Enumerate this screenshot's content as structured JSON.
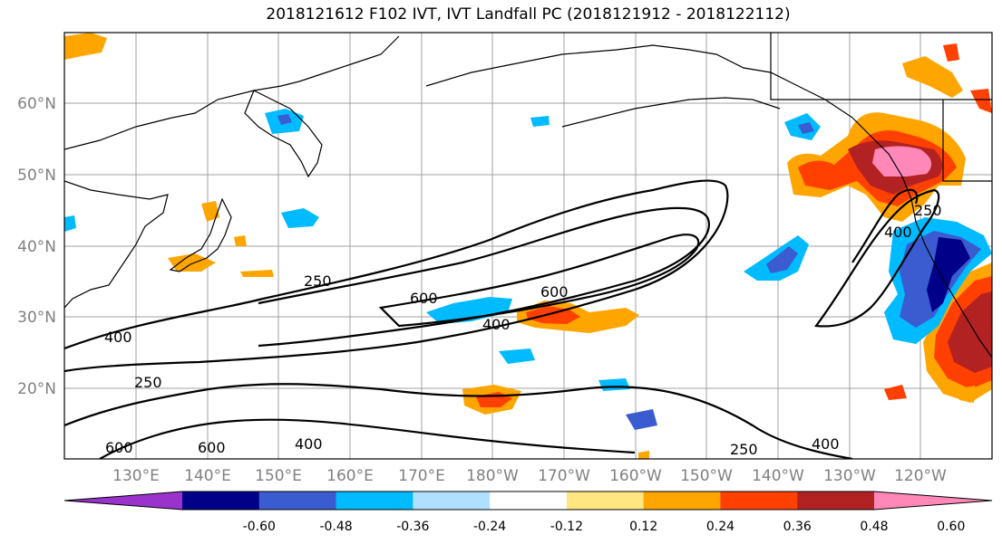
{
  "title": "2018121612 F102 IVT, IVT Landfall PC (2018121912 - 2018122112)",
  "latitude_labels": [
    "60°N",
    "50°N",
    "40°N",
    "30°N",
    "20°N"
  ],
  "longitude_labels": [
    "130°E",
    "140°E",
    "150°E",
    "160°E",
    "170°E",
    "180°W",
    "170°W",
    "160°W",
    "150°W",
    "140°W",
    "130°W",
    "120°W"
  ],
  "contour_labels": [
    "250",
    "600",
    "400",
    "250",
    "600",
    "400",
    "600",
    "400",
    "250",
    "400",
    "600",
    "250",
    "400"
  ],
  "colorbar": {
    "ticks": [
      "-0.60",
      "-0.48",
      "-0.36",
      "-0.24",
      "-0.12",
      "0.12",
      "0.24",
      "0.36",
      "0.48",
      "0.60"
    ],
    "colors": [
      "#9933cc",
      "#000088",
      "#3a5cd0",
      "#00bbff",
      "#b0e0ff",
      "#ffffff",
      "#ffe680",
      "#ffa500",
      "#ff4000",
      "#b22222",
      "#ff88b8"
    ]
  }
}
